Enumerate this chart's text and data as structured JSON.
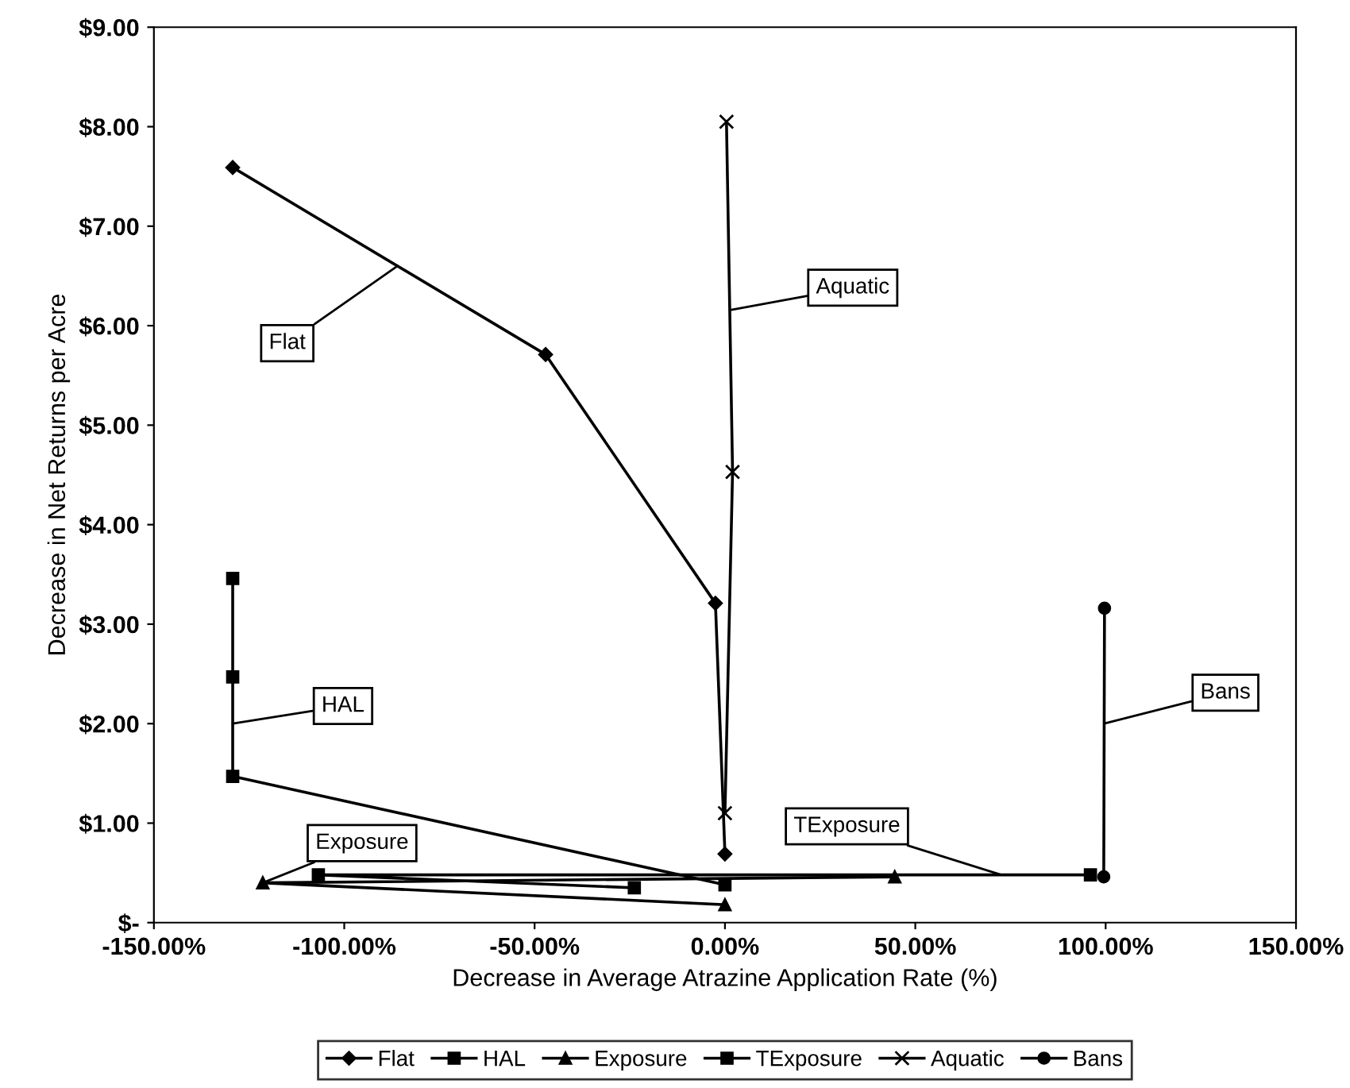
{
  "chart_data": {
    "type": "line",
    "xlabel": "Decrease in Average Atrazine Application Rate (%)",
    "ylabel": "Decrease in Net Returns per Acre",
    "xlim": [
      -150,
      150
    ],
    "xticks": [
      {
        "value": -150,
        "label": "-150.00%"
      },
      {
        "value": -100,
        "label": "-100.00%"
      },
      {
        "value": -50,
        "label": "-50.00%"
      },
      {
        "value": 0,
        "label": "0.00%"
      },
      {
        "value": 50,
        "label": "50.00%"
      },
      {
        "value": 100,
        "label": "100.00%"
      },
      {
        "value": 150,
        "label": "150.00%"
      }
    ],
    "ylim": [
      0,
      9
    ],
    "yticks": [
      {
        "value": 0,
        "label": "$-"
      },
      {
        "value": 1,
        "label": "$1.00"
      },
      {
        "value": 2,
        "label": "$2.00"
      },
      {
        "value": 3,
        "label": "$3.00"
      },
      {
        "value": 4,
        "label": "$4.00"
      },
      {
        "value": 5,
        "label": "$5.00"
      },
      {
        "value": 6,
        "label": "$6.00"
      },
      {
        "value": 7,
        "label": "$7.00"
      },
      {
        "value": 8,
        "label": "$8.00"
      },
      {
        "value": 9,
        "label": "$9.00"
      }
    ],
    "grid": false,
    "legend": "bottom",
    "series": [
      {
        "name": "Flat",
        "color": "#000000",
        "marker": "diamond",
        "x": [
          -129.3,
          -47.1,
          -2.5,
          0.0
        ],
        "values": [
          7.59,
          5.71,
          3.21,
          0.69
        ]
      },
      {
        "name": "HAL",
        "color": "#000000",
        "marker": "square",
        "x": [
          -129.3,
          -129.3,
          -129.3,
          0.0
        ],
        "values": [
          3.46,
          2.47,
          1.47,
          0.38
        ]
      },
      {
        "name": "Exposure",
        "color": "#000000",
        "marker": "triangle",
        "x": [
          0.0,
          -121.4,
          44.6
        ],
        "values": [
          0.18,
          0.4,
          0.46
        ]
      },
      {
        "name": "TExposure",
        "color": "#000000",
        "marker": "square",
        "x": [
          -23.8,
          -106.8,
          96.0
        ],
        "values": [
          0.35,
          0.48,
          0.48
        ]
      },
      {
        "name": "Aquatic",
        "color": "#000000",
        "marker": "cross",
        "x": [
          0.4,
          2.0,
          0.0
        ],
        "values": [
          8.05,
          4.53,
          1.1
        ]
      },
      {
        "name": "Bans",
        "color": "#000000",
        "marker": "circle",
        "x": [
          99.7,
          99.5
        ],
        "values": [
          3.16,
          0.46
        ]
      }
    ],
    "annotations": [
      {
        "text": "Flat",
        "x": -86,
        "y": 6.6
      },
      {
        "text": "Aquatic",
        "x": 1.7,
        "y": 6.16
      },
      {
        "text": "HAL",
        "x": -129.3,
        "y": 2.0
      },
      {
        "text": "Exposure",
        "x": -121.4,
        "y": 0.4
      },
      {
        "text": "TExposure",
        "x": 72.6,
        "y": 0.48
      },
      {
        "text": "Bans",
        "x": 99.6,
        "y": 2.0
      }
    ]
  }
}
